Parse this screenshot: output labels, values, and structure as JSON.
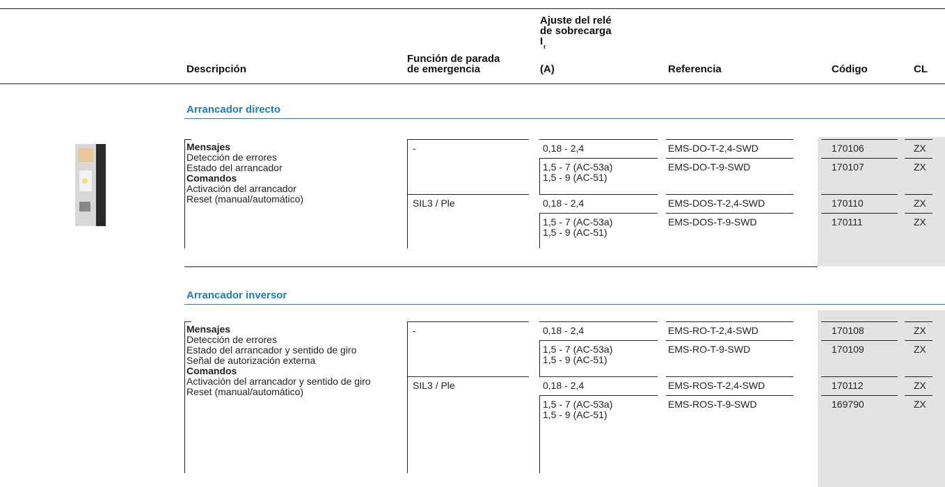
{
  "header": {
    "description": "Descripción",
    "function": [
      "Función de parada",
      "de emergencia"
    ],
    "setting": {
      "lines": [
        "Ajuste del relé",
        "de sobrecarga"
      ],
      "symbol": "I",
      "subscript": "r",
      "unit": "(A)"
    },
    "reference": "Referencia",
    "code": "Código",
    "cl": "CL"
  },
  "sections": [
    {
      "title": "Arrancador directo",
      "description": [
        {
          "text": "Mensajes",
          "bold": true
        },
        {
          "text": "Detección de errores",
          "bold": false
        },
        {
          "text": "Estado del arrancador",
          "bold": false
        },
        {
          "text": "Comandos",
          "bold": true
        },
        {
          "text": "Activación del arrancador",
          "bold": false
        },
        {
          "text": "Reset (manual/automático)",
          "bold": false
        }
      ],
      "groups": [
        {
          "function": "-",
          "rows": [
            {
              "setting": [
                "0,18 - 2,4"
              ],
              "reference": "EMS-DO-T-2,4-SWD",
              "code": "170106",
              "cl": "ZX"
            },
            {
              "setting": [
                "1,5 - 7 (AC-53a)",
                "1,5 - 9 (AC-51)"
              ],
              "reference": "EMS-DO-T-9-SWD",
              "code": "170107",
              "cl": "ZX"
            }
          ]
        },
        {
          "function": "SIL3 / Ple",
          "rows": [
            {
              "setting": [
                "0,18 - 2,4"
              ],
              "reference": "EMS-DOS-T-2,4-SWD",
              "code": "170110",
              "cl": "ZX"
            },
            {
              "setting": [
                "1,5 - 7 (AC-53a)",
                "1,5 - 9 (AC-51)"
              ],
              "reference": "EMS-DOS-T-9-SWD",
              "code": "170111",
              "cl": "ZX"
            }
          ]
        }
      ]
    },
    {
      "title": "Arrancador inversor",
      "description": [
        {
          "text": "Mensajes",
          "bold": true
        },
        {
          "text": "Detección de errores",
          "bold": false
        },
        {
          "text": "Estado del arrancador y sentido de giro",
          "bold": false
        },
        {
          "text": "Señal de autorización externa",
          "bold": false
        },
        {
          "text": "Comandos",
          "bold": true
        },
        {
          "text": "Activación del arrancador y sentido de giro",
          "bold": false
        },
        {
          "text": "Reset (manual/automático)",
          "bold": false
        }
      ],
      "groups": [
        {
          "function": "-",
          "rows": [
            {
              "setting": [
                "0,18 - 2,4"
              ],
              "reference": "EMS-RO-T-2,4-SWD",
              "code": "170108",
              "cl": "ZX"
            },
            {
              "setting": [
                "1,5 - 7 (AC-53a)",
                "1,5 - 9 (AC-51)"
              ],
              "reference": "EMS-RO-T-9-SWD",
              "code": "170109",
              "cl": "ZX"
            }
          ]
        },
        {
          "function": "SIL3 / Ple",
          "rows": [
            {
              "setting": [
                "0,18 - 2,4"
              ],
              "reference": "EMS-ROS-T-2,4-SWD",
              "code": "170112",
              "cl": "ZX"
            },
            {
              "setting": [
                "1,5 - 7 (AC-53a)",
                "1,5 - 9 (AC-51)"
              ],
              "reference": "EMS-ROS-T-9-SWD",
              "code": "169790",
              "cl": "ZX"
            }
          ]
        }
      ]
    }
  ]
}
